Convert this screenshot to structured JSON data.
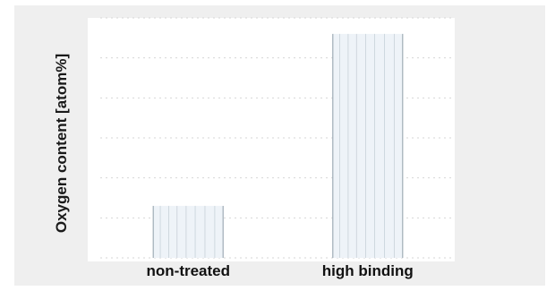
{
  "chart_data": {
    "type": "bar",
    "title": "",
    "xlabel": "",
    "ylabel": "Oxygen content [atom%]",
    "categories": [
      "non-treated",
      "high binding"
    ],
    "values": [
      6.5,
      28
    ],
    "ylim": [
      0,
      30
    ],
    "grid": true,
    "colors": {
      "bar_fill": "#eef3f8",
      "bar_stripe": "#9aa6b2",
      "grid": "#d6d6d6",
      "background": "#efefef"
    }
  }
}
